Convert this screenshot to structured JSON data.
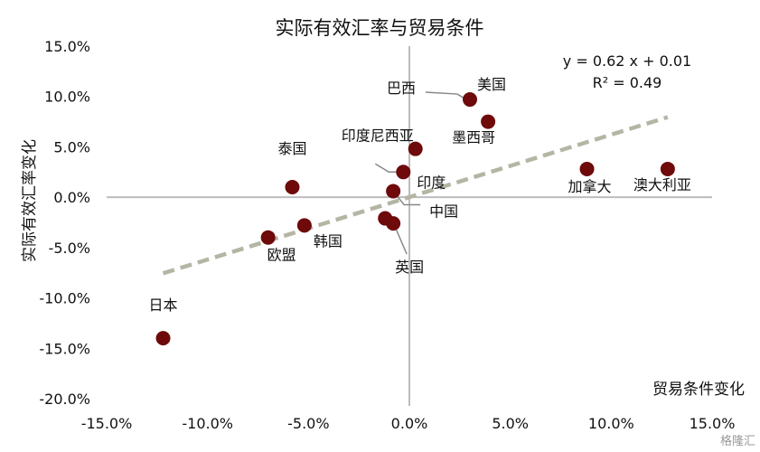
{
  "chart_data": {
    "type": "scatter",
    "title": "实际有效汇率与贸易条件",
    "xlabel": "贸易条件变化",
    "ylabel": "实际有效汇率变化",
    "xlim": [
      -15,
      15
    ],
    "ylim": [
      -20,
      15
    ],
    "x_ticks": [
      "-15.0%",
      "-10.0%",
      "-5.0%",
      "0.0%",
      "5.0%",
      "10.0%",
      "15.0%"
    ],
    "y_ticks": [
      "15.0%",
      "10.0%",
      "5.0%",
      "0.0%",
      "-5.0%",
      "-10.0%",
      "-15.0%",
      "-20.0%"
    ],
    "x_tick_values": [
      -15,
      -10,
      -5,
      0,
      5,
      10,
      15
    ],
    "y_tick_values": [
      15,
      10,
      5,
      0,
      -5,
      -10,
      -15,
      -20
    ],
    "points": [
      {
        "label": "美国",
        "x": 3.0,
        "y": 9.7
      },
      {
        "label": "巴西",
        "x": 3.0,
        "y": 9.7
      },
      {
        "label": "墨西哥",
        "x": 3.9,
        "y": 7.5
      },
      {
        "label": "印度尼西亚",
        "x": 0.3,
        "y": 4.8
      },
      {
        "label": "印度",
        "x": -0.3,
        "y": 2.5
      },
      {
        "label": "泰国",
        "x": -5.8,
        "y": 1.0
      },
      {
        "label": "加拿大",
        "x": 8.8,
        "y": 2.8
      },
      {
        "label": "澳大利亚",
        "x": 12.8,
        "y": 2.8
      },
      {
        "label": "中国",
        "x": -0.8,
        "y": 0.6
      },
      {
        "label": "英国",
        "x": -0.8,
        "y": -2.6
      },
      {
        "label": "韩国",
        "x": -5.2,
        "y": -2.8
      },
      {
        "label": "欧盟",
        "x": -7.0,
        "y": -4.0
      },
      {
        "label": "日本",
        "x": -12.2,
        "y": -14.0
      }
    ],
    "extra_point": {
      "x": -1.2,
      "y": -2.1
    },
    "trendline": {
      "slope": 0.62,
      "intercept": 0.01,
      "x_range": [
        -12.2,
        12.8
      ]
    },
    "equation": "y = 0.62 x + 0.01",
    "r_squared": "R² = 0.49",
    "grid": false
  },
  "colors": {
    "point": "#6e0a0a",
    "trend": "#b5b5a4",
    "axis": "#bdbdbd"
  },
  "watermark": "格隆汇"
}
